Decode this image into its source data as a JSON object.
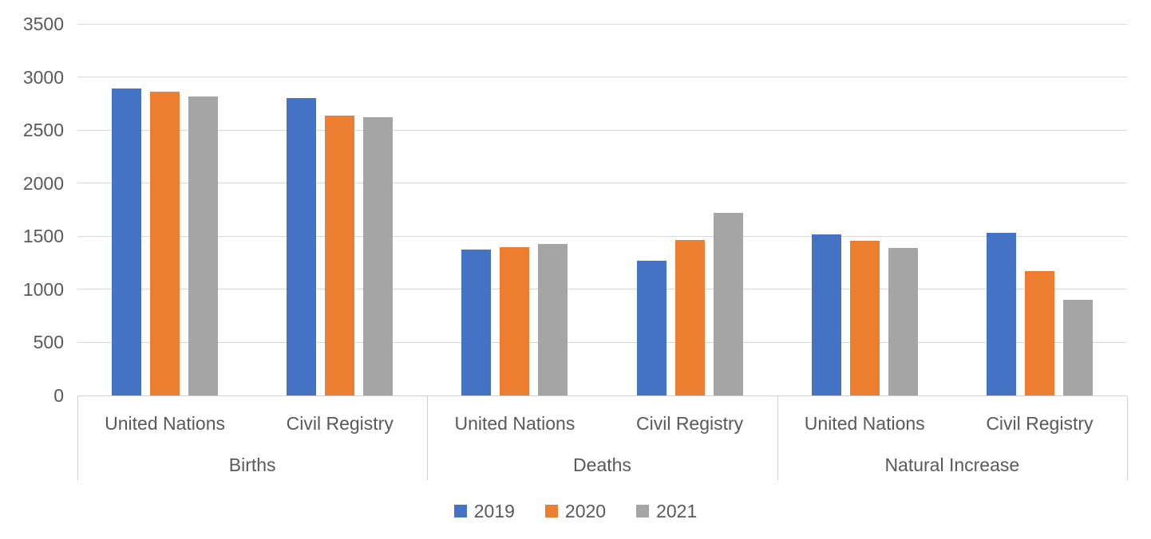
{
  "chart_data": {
    "type": "bar",
    "title": "",
    "group_labels": [
      "Births",
      "Deaths",
      "Natural Increase"
    ],
    "subcategory_labels": [
      "United Nations",
      "Civil Registry"
    ],
    "slots": [
      "Births - United Nations",
      "Births - Civil Registry",
      "Deaths - United Nations",
      "Deaths - Civil Registry",
      "Natural Increase - United Nations",
      "Natural Increase - Civil Registry"
    ],
    "series": [
      {
        "name": "2019",
        "color": "#4472C4",
        "values": [
          2890,
          2800,
          1375,
          1270,
          1515,
          1530
        ]
      },
      {
        "name": "2020",
        "color": "#ED7D31",
        "values": [
          2860,
          2640,
          1400,
          1465,
          1460,
          1175
        ]
      },
      {
        "name": "2021",
        "color": "#A5A5A5",
        "values": [
          2820,
          2620,
          1430,
          1720,
          1390,
          900
        ]
      }
    ],
    "ylim": [
      0,
      3500
    ],
    "ytick_step": 500,
    "yticks": [
      0,
      500,
      1000,
      1500,
      2000,
      2500,
      3000,
      3500
    ],
    "grid": "horizontal-only",
    "legend_position": "bottom",
    "axis_text_color": "#595959",
    "gridline_color": "#D9D9D9",
    "axis_line_color": "#D0CECE",
    "background_color": "#FFFFFF"
  }
}
